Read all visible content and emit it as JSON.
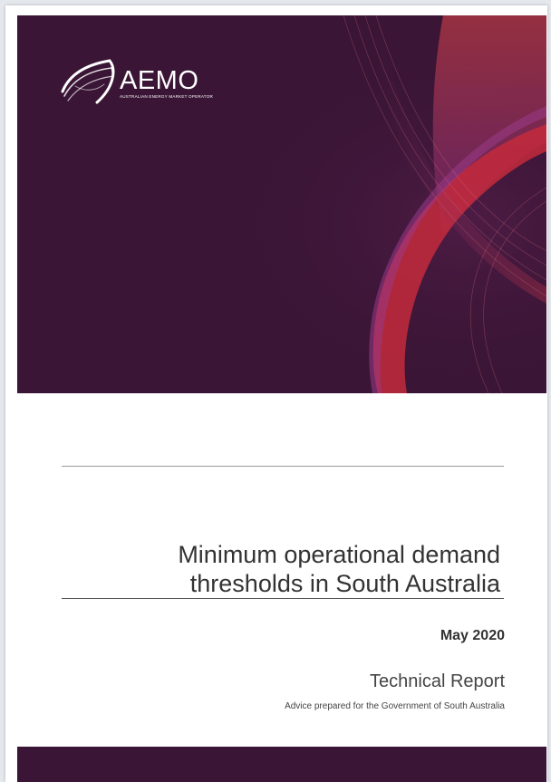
{
  "logo": {
    "name": "AEMO",
    "tagline": "AUSTRALIAN ENERGY MARKET OPERATOR"
  },
  "document": {
    "title_line1": "Minimum operational demand",
    "title_line2": "thresholds in South Australia",
    "date": "May 2020",
    "type": "Technical Report",
    "advice": "Advice prepared for the Government of South Australia"
  },
  "colors": {
    "banner_base": "#3a1535",
    "accent_red": "#c42a3c",
    "accent_violet": "#8d3a8e"
  },
  "icons": {
    "logo_mark": "aemo-swoosh-icon"
  }
}
